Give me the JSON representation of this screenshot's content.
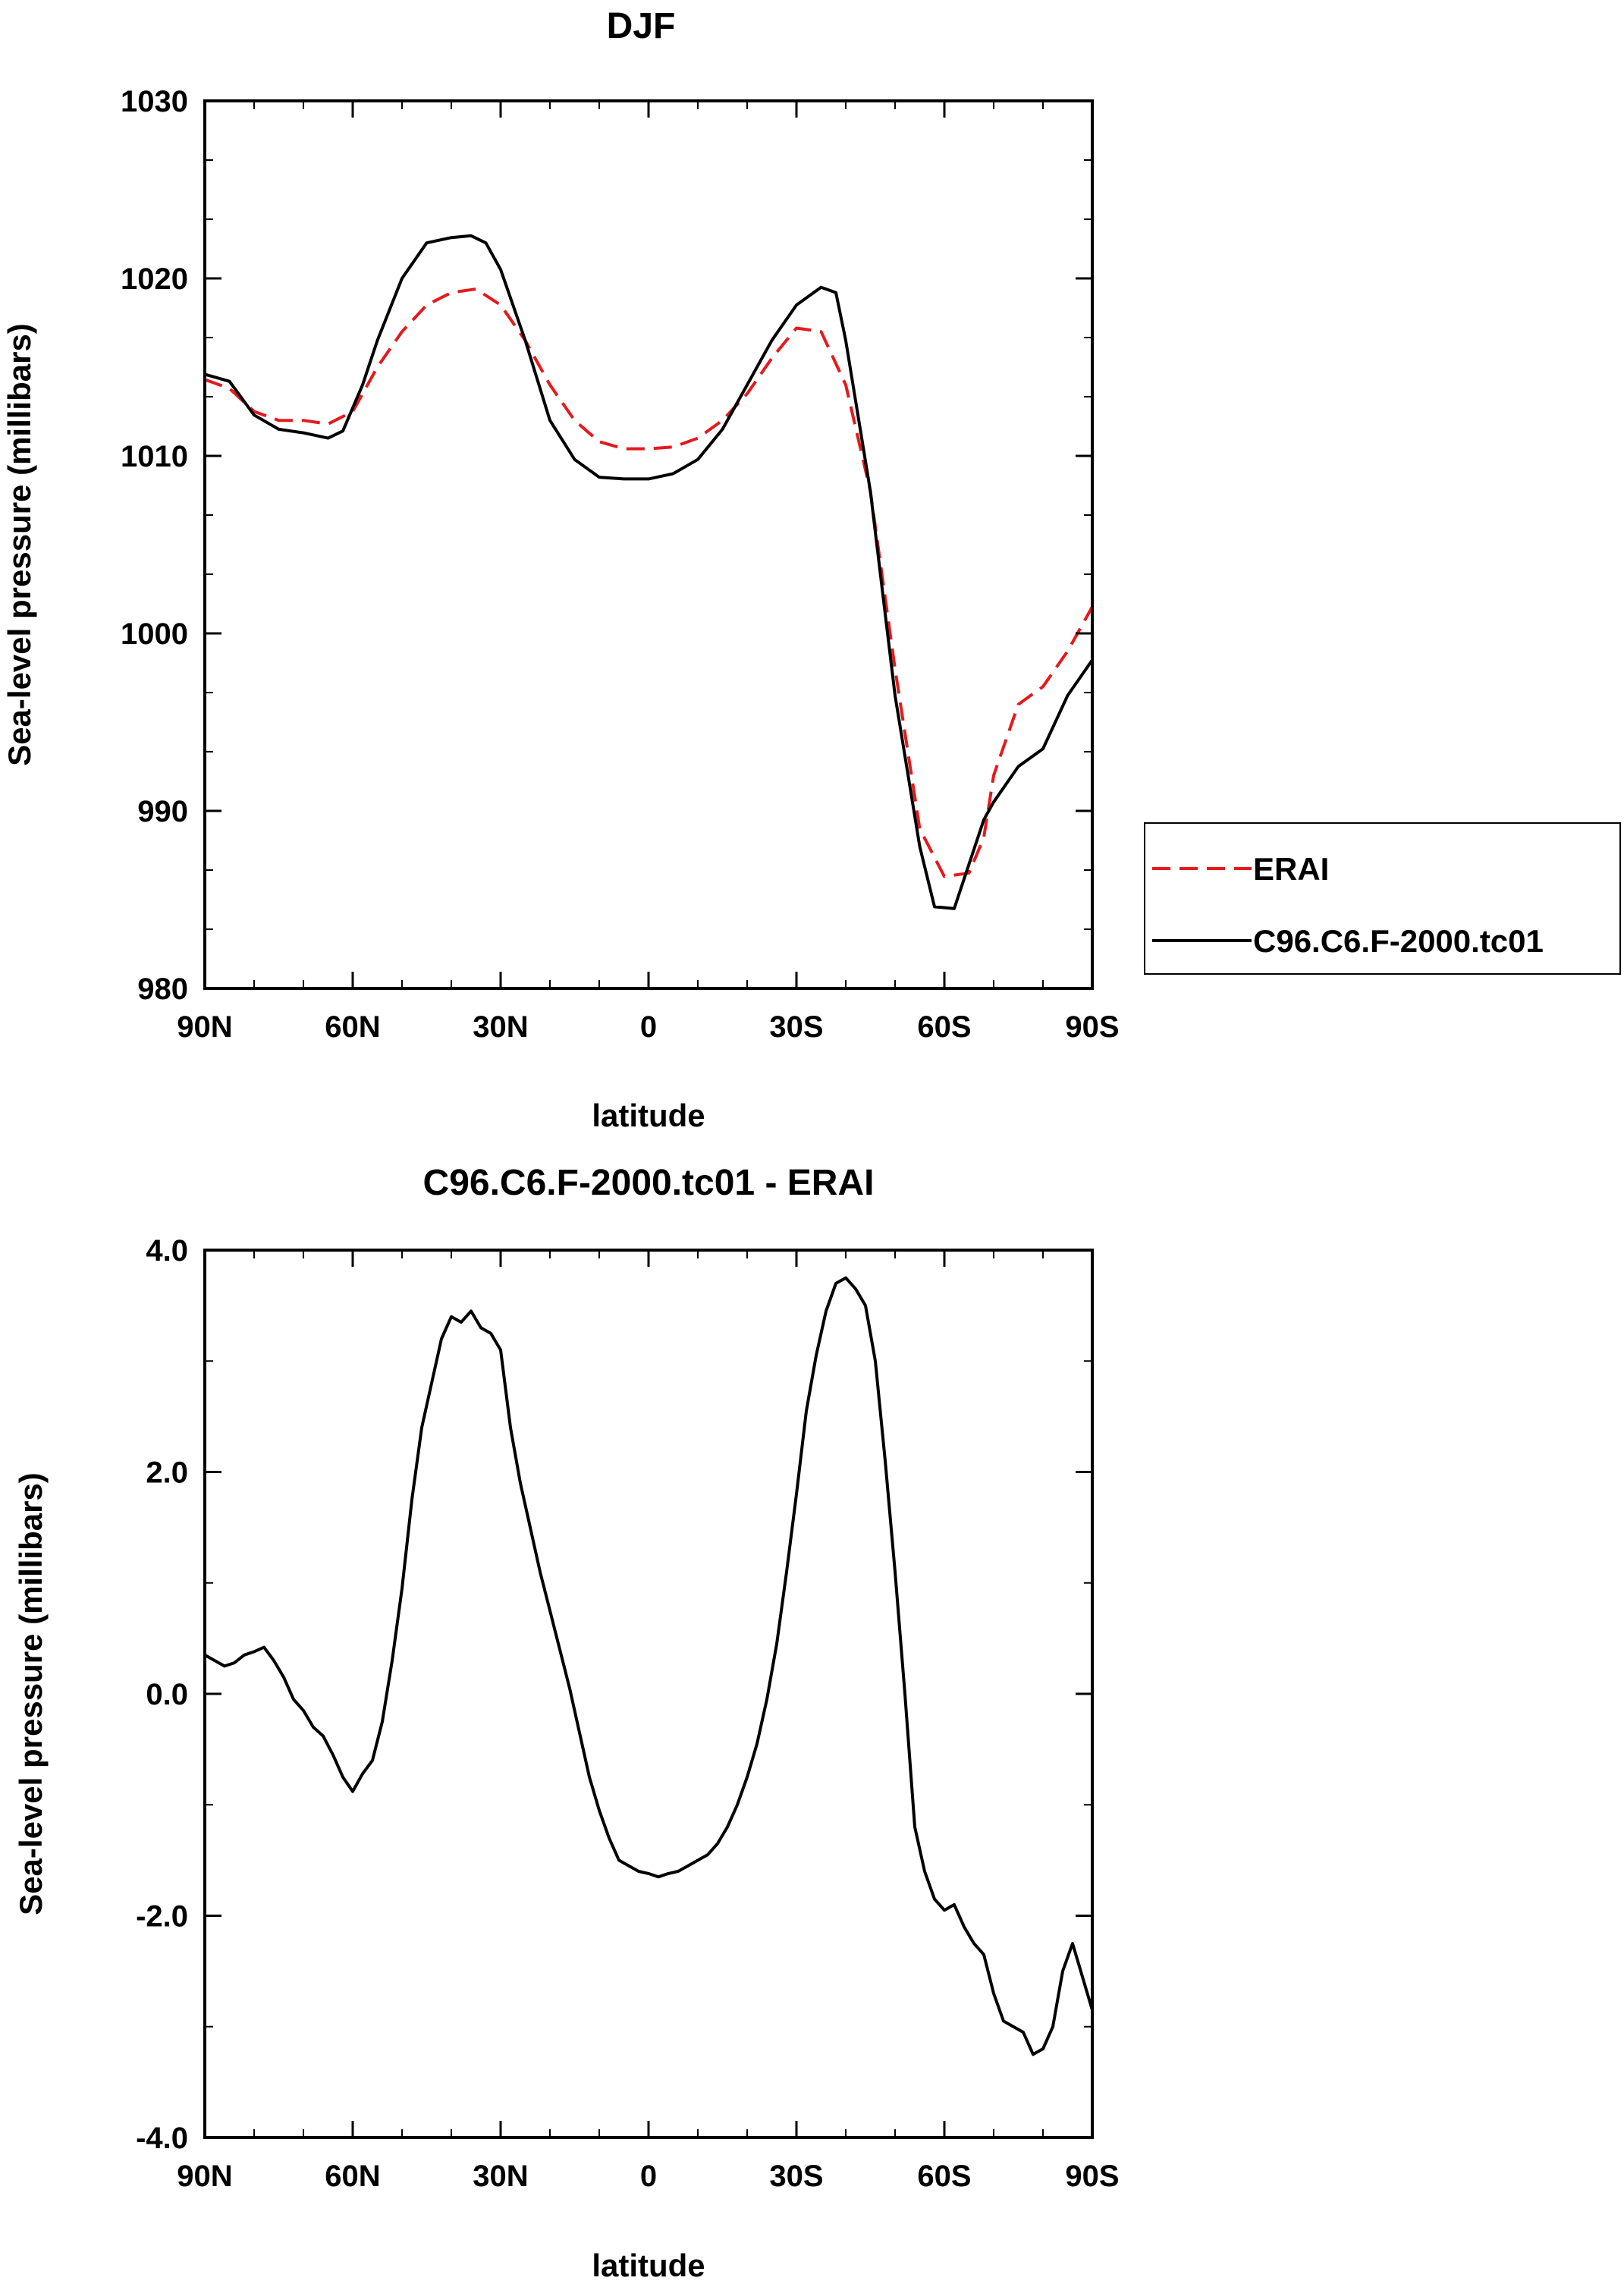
{
  "chart_data": [
    {
      "type": "line",
      "title": "DJF",
      "xlabel": "latitude",
      "ylabel": "Sea-level pressure (millibars)",
      "xlim": [
        90,
        -90
      ],
      "ylim": [
        980,
        1030
      ],
      "xticks": [
        90,
        60,
        30,
        0,
        -30,
        -60,
        -90
      ],
      "xtick_labels": [
        "90N",
        "60N",
        "30N",
        "0",
        "30S",
        "60S",
        "90S"
      ],
      "yticks": [
        980,
        990,
        1000,
        1010,
        1020,
        1030
      ],
      "ytick_labels": [
        "980",
        "990",
        "1000",
        "1010",
        "1020",
        "1030"
      ],
      "legend_position": "right",
      "series": [
        {
          "name": "ERAI",
          "color": "#e41a1c",
          "style": "dashed",
          "x": [
            90,
            85,
            80,
            75,
            70,
            65,
            60,
            55,
            50,
            45,
            40,
            35,
            30,
            25,
            20,
            15,
            10,
            5,
            0,
            -5,
            -10,
            -15,
            -20,
            -25,
            -30,
            -35,
            -40,
            -45,
            -50,
            -55,
            -60,
            -65,
            -68,
            -70,
            -75,
            -80,
            -85,
            -90
          ],
          "y": [
            1014.3,
            1013.8,
            1012.5,
            1012.0,
            1012.0,
            1011.8,
            1012.5,
            1015.0,
            1017.0,
            1018.5,
            1019.2,
            1019.4,
            1018.5,
            1016.5,
            1014.0,
            1012.0,
            1010.8,
            1010.4,
            1010.4,
            1010.5,
            1011.0,
            1012.0,
            1013.5,
            1015.5,
            1017.2,
            1017.0,
            1014.0,
            1008.0,
            998.0,
            989.0,
            986.3,
            986.5,
            988.5,
            992.0,
            996.0,
            997.0,
            999.0,
            1001.5
          ]
        },
        {
          "name": "C96.C6.F-2000.tc01",
          "color": "#000000",
          "style": "solid",
          "x": [
            90,
            85,
            80,
            75,
            70,
            65,
            62,
            58,
            55,
            50,
            45,
            40,
            36,
            33,
            30,
            25,
            20,
            15,
            10,
            5,
            0,
            -5,
            -10,
            -15,
            -20,
            -25,
            -30,
            -35,
            -38,
            -40,
            -45,
            -50,
            -55,
            -58,
            -62,
            -65,
            -68,
            -70,
            -75,
            -80,
            -85,
            -90
          ],
          "y": [
            1014.6,
            1014.2,
            1012.3,
            1011.5,
            1011.3,
            1011.0,
            1011.4,
            1014.0,
            1016.5,
            1020.0,
            1022.0,
            1022.3,
            1022.4,
            1022.0,
            1020.5,
            1016.5,
            1012.0,
            1009.8,
            1008.8,
            1008.7,
            1008.7,
            1009.0,
            1009.8,
            1011.5,
            1014.0,
            1016.5,
            1018.5,
            1019.5,
            1019.2,
            1016.5,
            1008.0,
            996.5,
            988.0,
            984.6,
            984.5,
            987.0,
            989.5,
            990.5,
            992.5,
            993.5,
            996.5,
            998.5
          ]
        }
      ]
    },
    {
      "type": "line",
      "title": "C96.C6.F-2000.tc01 - ERAI",
      "xlabel": "latitude",
      "ylabel": "Sea-level pressure (millibars)",
      "xlim": [
        90,
        -90
      ],
      "ylim": [
        -4.0,
        4.0
      ],
      "xticks": [
        90,
        60,
        30,
        0,
        -30,
        -60,
        -90
      ],
      "xtick_labels": [
        "90N",
        "60N",
        "30N",
        "0",
        "30S",
        "60S",
        "90S"
      ],
      "yticks": [
        -4.0,
        -2.0,
        0.0,
        2.0,
        4.0
      ],
      "ytick_labels": [
        "-4.0",
        "-2.0",
        "0.0",
        "2.0",
        "4.0"
      ],
      "series": [
        {
          "color": "#000000",
          "style": "solid",
          "x": [
            90,
            88,
            86,
            84,
            82,
            80,
            78,
            76,
            74,
            72,
            70,
            68,
            66,
            64,
            62,
            60,
            58,
            56,
            54,
            52,
            50,
            48,
            46,
            44,
            42,
            40,
            38,
            36,
            34,
            32,
            30,
            28,
            26,
            24,
            22,
            20,
            18,
            16,
            14,
            12,
            10,
            8,
            6,
            4,
            2,
            0,
            -2,
            -4,
            -6,
            -8,
            -10,
            -12,
            -14,
            -16,
            -18,
            -20,
            -22,
            -24,
            -26,
            -28,
            -30,
            -32,
            -34,
            -36,
            -38,
            -40,
            -42,
            -44,
            -46,
            -48,
            -50,
            -52,
            -54,
            -56,
            -58,
            -60,
            -62,
            -64,
            -66,
            -68,
            -70,
            -72,
            -74,
            -76,
            -78,
            -80,
            -82,
            -84,
            -86,
            -88,
            -90
          ],
          "y": [
            0.35,
            0.3,
            0.25,
            0.28,
            0.35,
            0.38,
            0.42,
            0.3,
            0.15,
            -0.05,
            -0.15,
            -0.3,
            -0.38,
            -0.55,
            -0.75,
            -0.88,
            -0.72,
            -0.6,
            -0.25,
            0.3,
            0.95,
            1.75,
            2.4,
            2.8,
            3.2,
            3.4,
            3.35,
            3.45,
            3.3,
            3.25,
            3.1,
            2.4,
            1.9,
            1.5,
            1.1,
            0.75,
            0.4,
            0.05,
            -0.35,
            -0.75,
            -1.05,
            -1.3,
            -1.5,
            -1.55,
            -1.6,
            -1.62,
            -1.65,
            -1.62,
            -1.6,
            -1.55,
            -1.5,
            -1.45,
            -1.35,
            -1.2,
            -1.0,
            -0.75,
            -0.45,
            -0.05,
            0.45,
            1.1,
            1.8,
            2.55,
            3.05,
            3.45,
            3.7,
            3.75,
            3.65,
            3.5,
            3.0,
            2.1,
            1.1,
            0.0,
            -1.2,
            -1.6,
            -1.85,
            -1.95,
            -1.9,
            -2.1,
            -2.25,
            -2.35,
            -2.7,
            -2.95,
            -3.0,
            -3.05,
            -3.25,
            -3.2,
            -3.0,
            -2.5,
            -2.25,
            -2.55,
            -2.85
          ]
        }
      ]
    }
  ]
}
